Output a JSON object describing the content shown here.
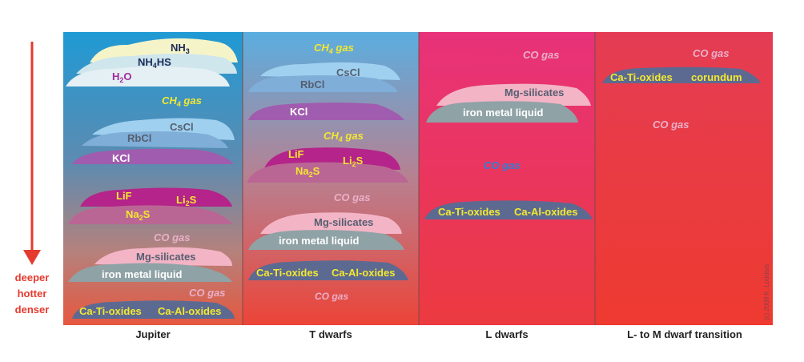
{
  "colors": {
    "yellow_text": "#f3e830",
    "white_text": "#ffffff",
    "gray_text": "#555f70",
    "blue_text": "#2f7fd8",
    "co_text": "#eab0c8",
    "arrow": "#e53a2e",
    "cloud_nh3": "#f5f4c8",
    "cloud_nh4sh": "#cfe6ec",
    "cloud_h2o": "#e4f0f4",
    "cloud_cscl": "#9fd0ef",
    "cloud_rbcl": "#7faed8",
    "cloud_kcl": "#a05cae",
    "cloud_lif": "#b4248a",
    "cloud_na2s": "#ba6694",
    "cloud_mgsil": "#f3b4c6",
    "cloud_iron": "#8fa2a6",
    "cloud_oxides": "#5c6a92"
  },
  "depth": {
    "arrow_icon": "arrow-down-icon",
    "lines": [
      "deeper",
      "hotter",
      "denser"
    ]
  },
  "credit": "(c) 2009 K. Lodders",
  "columns": [
    {
      "label": "Jupiter",
      "labels": {
        "nh3": {
          "pre": "NH",
          "sub": "3",
          "post": ""
        },
        "nh4hs": {
          "pre": "NH",
          "sub": "4",
          "post": "HS"
        },
        "h2o": {
          "pre": "H",
          "sub": "2",
          "post": "O"
        },
        "ch4": {
          "pre": "CH",
          "sub": "4",
          "post": " gas"
        },
        "cscl": "CsCl",
        "rbcl": "RbCl",
        "kcl": "KCl",
        "lif": "LiF",
        "li2s": {
          "pre": "Li",
          "sub": "2",
          "post": "S"
        },
        "na2s": {
          "pre": "Na",
          "sub": "2",
          "post": "S"
        },
        "co1": "CO gas",
        "mgsil": "Mg-silicates",
        "iron": "iron metal liquid",
        "co2": "CO gas",
        "catio": "Ca-Ti-oxides",
        "caalo": "Ca-Al-oxides"
      }
    },
    {
      "label": "T dwarfs",
      "labels": {
        "ch4a": {
          "pre": "CH",
          "sub": "4",
          "post": " gas"
        },
        "cscl": "CsCl",
        "rbcl": "RbCl",
        "kcl": "KCl",
        "ch4b": {
          "pre": "CH",
          "sub": "4",
          "post": " gas"
        },
        "lif": "LiF",
        "li2s": {
          "pre": "Li",
          "sub": "2",
          "post": "S"
        },
        "na2s": {
          "pre": "Na",
          "sub": "2",
          "post": "S"
        },
        "co1": "CO gas",
        "mgsil": "Mg-silicates",
        "iron": "iron metal liquid",
        "catio": "Ca-Ti-oxides",
        "caalo": "Ca-Al-oxides",
        "co2": "CO gas"
      }
    },
    {
      "label": "L dwarfs",
      "labels": {
        "co1": "CO gas",
        "mgsil": "Mg-silicates",
        "iron": "iron metal liquid",
        "co2": "CO gas",
        "catio": "Ca-Ti-oxides",
        "caalo": "Ca-Al-oxides"
      }
    },
    {
      "label": "L- to M dwarf transition",
      "labels": {
        "co1": "CO gas",
        "catio": "Ca-Ti-oxides",
        "corundum": "corundum",
        "co2": "CO gas"
      }
    }
  ]
}
